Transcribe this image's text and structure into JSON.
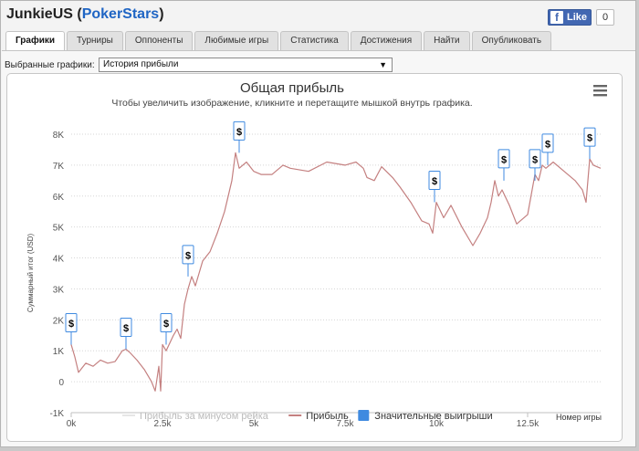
{
  "window": {
    "user": "JunkieUS",
    "paren_open": " (",
    "site": "PokerStars",
    "paren_close": ")",
    "fb_like": "Like",
    "fb_f": "f",
    "fb_count": "0"
  },
  "tabs": [
    {
      "label": "Графики",
      "active": true
    },
    {
      "label": "Турниры",
      "active": false
    },
    {
      "label": "Оппоненты",
      "active": false
    },
    {
      "label": "Любимые игры",
      "active": false
    },
    {
      "label": "Статистика",
      "active": false
    },
    {
      "label": "Достижения",
      "active": false
    },
    {
      "label": "Найти",
      "active": false
    },
    {
      "label": "Опубликовать",
      "active": false
    }
  ],
  "selector": {
    "label": "Выбранные графики:",
    "value": "История прибыли",
    "arrow": "▼"
  },
  "colors": {
    "profit_line": "#c48080",
    "rake_line": "#e6e6e6",
    "big_wins": "#3f8ae0",
    "grid": "#d6d6d6",
    "axis_text": "#555555",
    "title": "#333333"
  },
  "chart_data": {
    "type": "line",
    "title": "Общая прибыль",
    "subtitle": "Чтобы увеличить изображение, кликните и перетащите мышкой внутрь графика.",
    "xlabel": "Номер игры",
    "ylabel": "Суммарный итог (USD)",
    "xlim": [
      0,
      14500
    ],
    "ylim": [
      -1000,
      8000
    ],
    "x_ticks": [
      0,
      2500,
      5000,
      7500,
      10000,
      12500
    ],
    "x_tick_labels": [
      "0k",
      "2.5k",
      "5k",
      "7.5k",
      "10k",
      "12.5k"
    ],
    "y_ticks": [
      -1000,
      0,
      1000,
      2000,
      3000,
      4000,
      5000,
      6000,
      7000,
      8000
    ],
    "y_tick_labels": [
      "-1K",
      "0",
      "1K",
      "2K",
      "3K",
      "4K",
      "5K",
      "6K",
      "7K",
      "8K"
    ],
    "grid": "horizontal dotted",
    "legend_position": "bottom-center",
    "series": [
      {
        "name": "Прибыль",
        "x": [
          0,
          100,
          200,
          400,
          600,
          800,
          1000,
          1200,
          1400,
          1500,
          1600,
          1800,
          2000,
          2200,
          2300,
          2400,
          2450,
          2500,
          2600,
          2800,
          2900,
          3000,
          3100,
          3200,
          3300,
          3400,
          3500,
          3600,
          3800,
          4000,
          4200,
          4400,
          4500,
          4600,
          4800,
          5000,
          5200,
          5500,
          5800,
          6000,
          6500,
          7000,
          7500,
          7800,
          8000,
          8100,
          8300,
          8500,
          8800,
          9000,
          9300,
          9600,
          9800,
          9900,
          10000,
          10200,
          10400,
          10700,
          11000,
          11200,
          11400,
          11500,
          11600,
          11700,
          11800,
          12000,
          12200,
          12500,
          12700,
          12800,
          12900,
          13000,
          13200,
          13500,
          13800,
          14000,
          14100,
          14200,
          14300,
          14500
        ],
        "y": [
          1200,
          800,
          300,
          600,
          500,
          700,
          600,
          650,
          1000,
          1050,
          950,
          700,
          400,
          0,
          -300,
          500,
          -300,
          1200,
          1000,
          1500,
          1700,
          1400,
          2500,
          3000,
          3400,
          3100,
          3500,
          3900,
          4200,
          4800,
          5500,
          6500,
          7400,
          6900,
          7100,
          6800,
          6700,
          6700,
          7000,
          6900,
          6800,
          7100,
          7000,
          7100,
          6900,
          6600,
          6500,
          6950,
          6600,
          6300,
          5800,
          5200,
          5100,
          4800,
          5800,
          5300,
          5700,
          5000,
          4400,
          4800,
          5300,
          5800,
          6500,
          6000,
          6200,
          5700,
          5100,
          5400,
          6700,
          6500,
          7000,
          6900,
          7100,
          6800,
          6500,
          6200,
          5800,
          7200,
          7000,
          6900
        ]
      },
      {
        "name": "Прибыль за минусом рейка",
        "x": [],
        "y": []
      }
    ],
    "big_wins": {
      "name": "Значительные выигрыши",
      "marker_label": "$",
      "x": [
        0,
        1500,
        2600,
        3200,
        4600,
        9950,
        11850,
        12700,
        13050,
        14200
      ],
      "y": [
        1200,
        1050,
        1200,
        3400,
        7400,
        5800,
        6500,
        6500,
        7000,
        7200
      ]
    },
    "legend": [
      {
        "name": "Прибыль за минусом рейка",
        "kind": "line",
        "color": "#e6e6e6",
        "text_color": "#bbbbbb"
      },
      {
        "name": "Прибыль",
        "kind": "line",
        "color": "#c48080",
        "text_color": "#333333"
      },
      {
        "name": "Значительные выигрыши",
        "kind": "square",
        "color": "#3f8ae0",
        "text_color": "#333333"
      }
    ]
  }
}
